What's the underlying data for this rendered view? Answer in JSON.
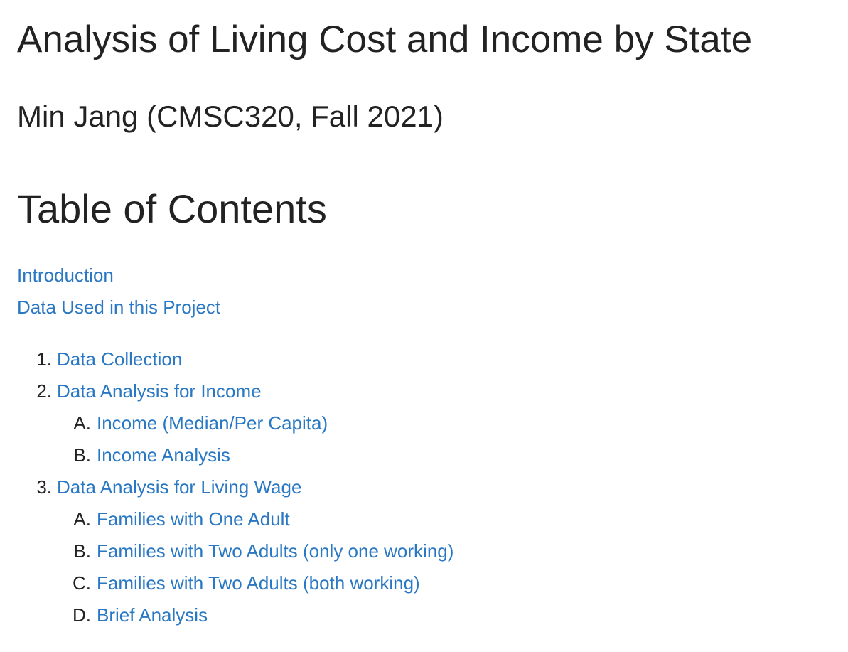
{
  "header": {
    "title": "Analysis of Living Cost and Income by State",
    "subtitle": "Min Jang (CMSC320, Fall 2021)"
  },
  "toc": {
    "heading": "Table of Contents",
    "links": [
      "Introduction",
      "Data Used in this Project"
    ],
    "items": [
      {
        "marker": "1.",
        "label": "Data Collection",
        "children": []
      },
      {
        "marker": "2.",
        "label": "Data Analysis for Income",
        "children": [
          {
            "marker": "A.",
            "label": "Income (Median/Per Capita)"
          },
          {
            "marker": "B.",
            "label": "Income Analysis"
          }
        ]
      },
      {
        "marker": "3.",
        "label": "Data Analysis for Living Wage",
        "children": [
          {
            "marker": "A.",
            "label": "Families with One Adult"
          },
          {
            "marker": "B.",
            "label": "Families with Two Adults (only one working)"
          },
          {
            "marker": "C.",
            "label": "Families with Two Adults (both working)"
          },
          {
            "marker": "D.",
            "label": "Brief Analysis"
          }
        ]
      }
    ]
  }
}
